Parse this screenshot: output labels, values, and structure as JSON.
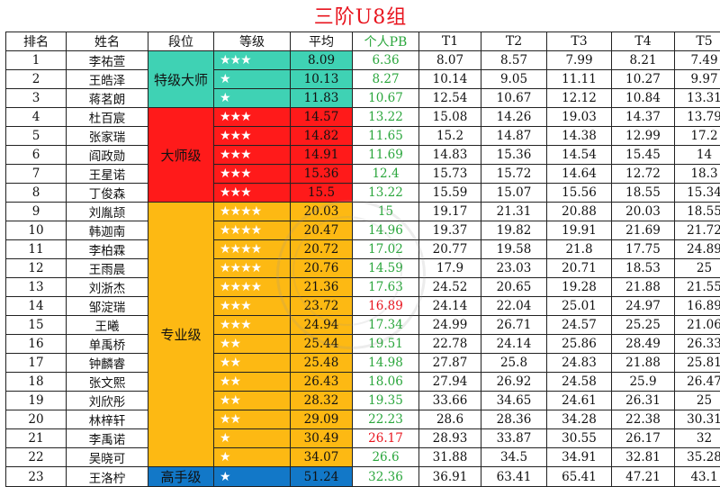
{
  "title": "三阶U8组",
  "columns": [
    "排名",
    "姓名",
    "段位",
    "等级",
    "平均",
    "个人PB",
    "T1",
    "T2",
    "T3",
    "T4",
    "T5"
  ],
  "colors": {
    "grandmaster_teal": "#3fd2b4",
    "master_red": "#ff1a1a",
    "pro_orange": "#fdb913",
    "expert_blue": "#1278c8",
    "pb_green": "#2aa63c",
    "title_red": "#e8141e"
  },
  "tiers": [
    {
      "label": "特级大师",
      "rows": 3,
      "color": "#3fd2b4"
    },
    {
      "label": "大师级",
      "rows": 5,
      "color": "#ff1a1a"
    },
    {
      "label": "专业级",
      "rows": 14,
      "color": "#fdb913"
    },
    {
      "label": "高手级",
      "rows": 1,
      "color": "#1278c8"
    }
  ],
  "rows": [
    {
      "rank": "1",
      "name": "李祐萱",
      "stars": "★★★",
      "avg": "8.09",
      "pb": "6.36",
      "pb_red": false,
      "t": [
        "8.07",
        "8.57",
        "7.99",
        "8.21",
        "7.49"
      ]
    },
    {
      "rank": "2",
      "name": "王皓泽",
      "stars": "★",
      "avg": "10.13",
      "pb": "8.27",
      "pb_red": false,
      "t": [
        "10.14",
        "9.05",
        "11.11",
        "10.27",
        "9.97"
      ]
    },
    {
      "rank": "3",
      "name": "蒋茗朗",
      "stars": "★",
      "avg": "11.83",
      "pb": "10.67",
      "pb_red": false,
      "t": [
        "12.54",
        "10.67",
        "12.12",
        "10.84",
        "13.31"
      ]
    },
    {
      "rank": "4",
      "name": "杜百宸",
      "stars": "★★★",
      "avg": "14.57",
      "pb": "13.22",
      "pb_red": false,
      "t": [
        "15.08",
        "14.26",
        "19.03",
        "14.37",
        "13.79"
      ]
    },
    {
      "rank": "5",
      "name": "张家瑞",
      "stars": "★★★",
      "avg": "14.82",
      "pb": "11.65",
      "pb_red": false,
      "t": [
        "15.2",
        "14.87",
        "14.38",
        "12.99",
        "17.2"
      ]
    },
    {
      "rank": "6",
      "name": "阎政勋",
      "stars": "★★★",
      "avg": "14.91",
      "pb": "11.69",
      "pb_red": false,
      "t": [
        "14.83",
        "15.36",
        "14.54",
        "15.45",
        "14"
      ]
    },
    {
      "rank": "7",
      "name": "王星诺",
      "stars": "★★★",
      "avg": "15.36",
      "pb": "12.4",
      "pb_red": false,
      "t": [
        "15.73",
        "15.72",
        "14.64",
        "12.72",
        "18.3"
      ]
    },
    {
      "rank": "8",
      "name": "丁俊森",
      "stars": "★★★",
      "avg": "15.5",
      "pb": "13.22",
      "pb_red": false,
      "t": [
        "15.59",
        "15.07",
        "15.56",
        "18.55",
        "15.34"
      ]
    },
    {
      "rank": "9",
      "name": "刘胤颉",
      "stars": "★★★★",
      "avg": "20.03",
      "pb": "15",
      "pb_red": false,
      "t": [
        "19.17",
        "21.31",
        "20.88",
        "20.03",
        "18.55"
      ]
    },
    {
      "rank": "10",
      "name": "韩迦南",
      "stars": "★★★★",
      "avg": "20.47",
      "pb": "14.96",
      "pb_red": false,
      "t": [
        "19.37",
        "19.82",
        "19.91",
        "21.69",
        "21.72"
      ]
    },
    {
      "rank": "11",
      "name": "李柏霖",
      "stars": "★★★★",
      "avg": "20.72",
      "pb": "17.02",
      "pb_red": false,
      "t": [
        "20.77",
        "19.58",
        "21.8",
        "17.75",
        "24.89"
      ]
    },
    {
      "rank": "12",
      "name": "王雨晨",
      "stars": "★★★★",
      "avg": "20.76",
      "pb": "14.59",
      "pb_red": false,
      "t": [
        "17.9",
        "23.03",
        "20.71",
        "18.53",
        "25"
      ]
    },
    {
      "rank": "13",
      "name": "刘浙杰",
      "stars": "★★★★",
      "avg": "21.36",
      "pb": "17.63",
      "pb_red": false,
      "t": [
        "24.52",
        "20.65",
        "19.28",
        "21.88",
        "21.55"
      ]
    },
    {
      "rank": "14",
      "name": "邹淀瑞",
      "stars": "★★★",
      "avg": "23.72",
      "pb": "16.89",
      "pb_red": true,
      "t": [
        "24.14",
        "22.04",
        "25.01",
        "24.97",
        "16.89"
      ]
    },
    {
      "rank": "15",
      "name": "王曦",
      "stars": "★★★",
      "avg": "24.94",
      "pb": "17.34",
      "pb_red": false,
      "t": [
        "24.99",
        "26.71",
        "24.57",
        "25.25",
        "21.06"
      ]
    },
    {
      "rank": "16",
      "name": "单禹桥",
      "stars": "★★",
      "avg": "25.44",
      "pb": "19.51",
      "pb_red": false,
      "t": [
        "22.78",
        "24.14",
        "25.86",
        "28.49",
        "26.33"
      ]
    },
    {
      "rank": "17",
      "name": "钟麟睿",
      "stars": "★★",
      "avg": "25.48",
      "pb": "14.98",
      "pb_red": false,
      "t": [
        "27.87",
        "25.8",
        "24.83",
        "21.88",
        "25.81"
      ]
    },
    {
      "rank": "18",
      "name": "张文熙",
      "stars": "★★",
      "avg": "26.43",
      "pb": "18.06",
      "pb_red": false,
      "t": [
        "27.94",
        "26.92",
        "24.58",
        "25.9",
        "26.47"
      ]
    },
    {
      "rank": "19",
      "name": "刘欣彤",
      "stars": "★★",
      "avg": "28.32",
      "pb": "19.35",
      "pb_red": false,
      "t": [
        "33.66",
        "34.65",
        "24.61",
        "26.31",
        "25"
      ]
    },
    {
      "rank": "20",
      "name": "林梓轩",
      "stars": "★★",
      "avg": "29.09",
      "pb": "22.23",
      "pb_red": false,
      "t": [
        "28.6",
        "28.36",
        "34.28",
        "22.38",
        "30.31"
      ]
    },
    {
      "rank": "21",
      "name": "李禹诺",
      "stars": "★",
      "avg": "30.49",
      "pb": "26.17",
      "pb_red": true,
      "t": [
        "28.93",
        "33.87",
        "30.55",
        "26.17",
        "32"
      ]
    },
    {
      "rank": "22",
      "name": "吴晓可",
      "stars": "★",
      "avg": "34.07",
      "pb": "26.6",
      "pb_red": false,
      "t": [
        "31.88",
        "34.5",
        "34.91",
        "32.81",
        "35.28"
      ]
    },
    {
      "rank": "23",
      "name": "王洛柠",
      "stars": "★",
      "avg": "51.24",
      "pb": "32.36",
      "pb_red": false,
      "t": [
        "36.91",
        "63.41",
        "65.41",
        "47.21",
        "43.1"
      ]
    }
  ]
}
